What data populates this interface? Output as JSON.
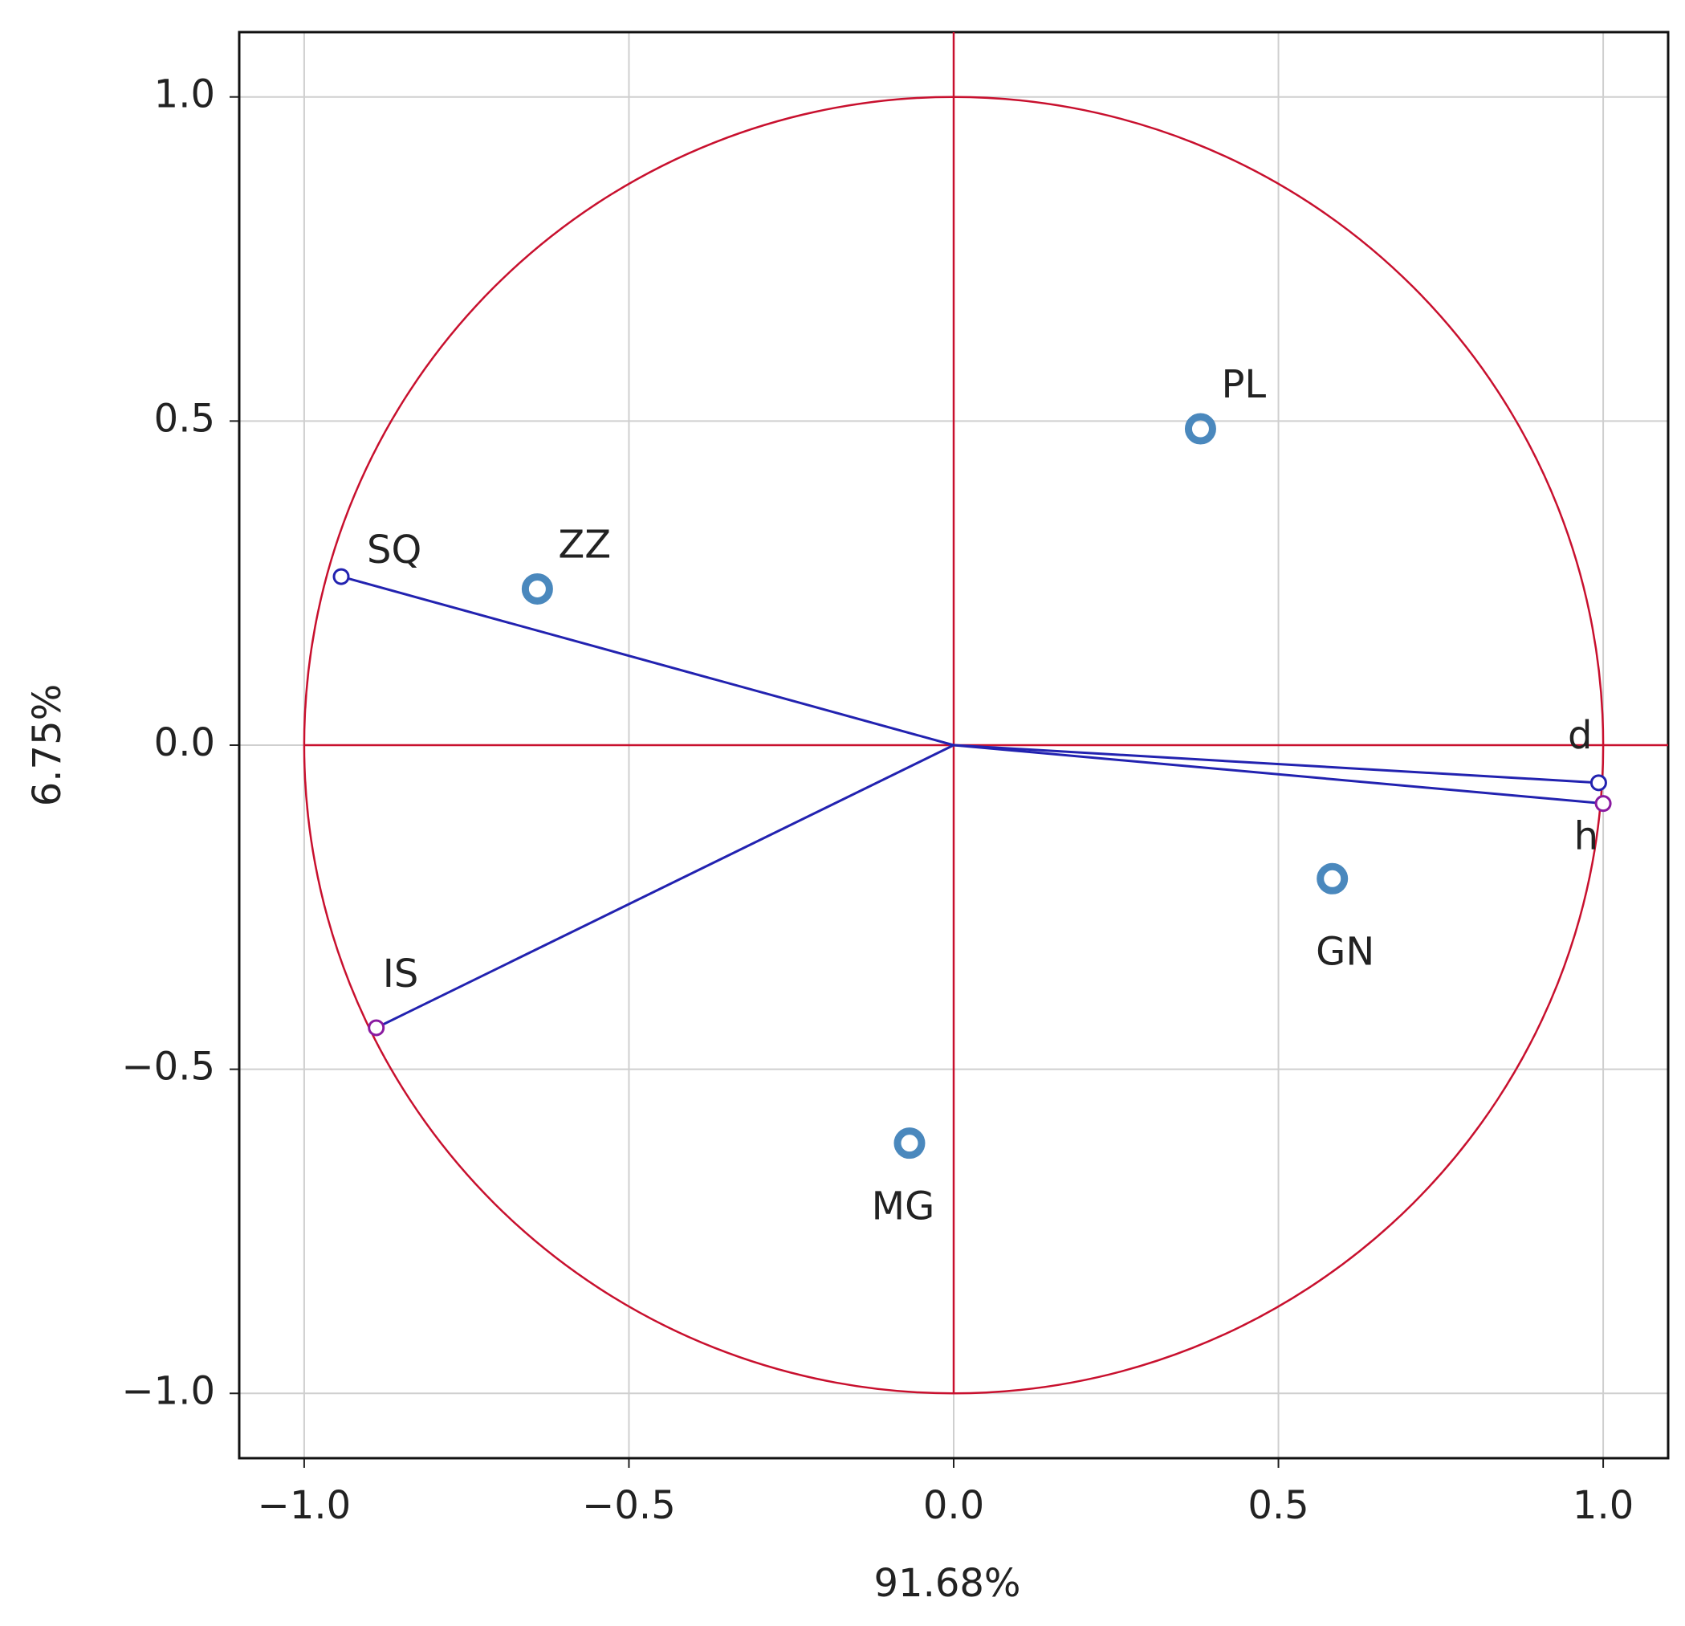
{
  "chart_data": {
    "type": "biplot",
    "x_label": "91.68%",
    "y_label": "6.75%",
    "xlim": [
      -1.1,
      1.1
    ],
    "ylim": [
      -1.1,
      1.1
    ],
    "xticks": [
      {
        "value": -1.0,
        "label": "−1.0"
      },
      {
        "value": -0.5,
        "label": "−0.5"
      },
      {
        "value": 0,
        "label": "0.0"
      },
      {
        "value": 0.5,
        "label": "0.5"
      },
      {
        "value": 1.0,
        "label": "1.0"
      }
    ],
    "yticks": [
      {
        "value": -1.0,
        "label": "−1.0"
      },
      {
        "value": -0.5,
        "label": "−0.5"
      },
      {
        "value": 0,
        "label": "0.0"
      },
      {
        "value": 0.5,
        "label": "0.5"
      },
      {
        "value": 1.0,
        "label": "1.0"
      }
    ],
    "grid": true,
    "unit_circle": true,
    "axis_color": "#c8102e",
    "variables": {
      "color": "#2222b0",
      "labels": [
        "SQ",
        "IS",
        "d",
        "h"
      ],
      "x": [
        -0.943,
        -0.889,
        0.993,
        1.0
      ],
      "y": [
        0.26,
        -0.436,
        -0.058,
        -0.09
      ]
    },
    "cases": {
      "color": "#4a88bd",
      "labels": [
        "ZZ",
        "PL",
        "GN",
        "MG"
      ],
      "x": [
        -0.641,
        0.38,
        0.583,
        -0.068
      ],
      "y": [
        0.241,
        0.488,
        -0.206,
        -0.614
      ]
    }
  }
}
